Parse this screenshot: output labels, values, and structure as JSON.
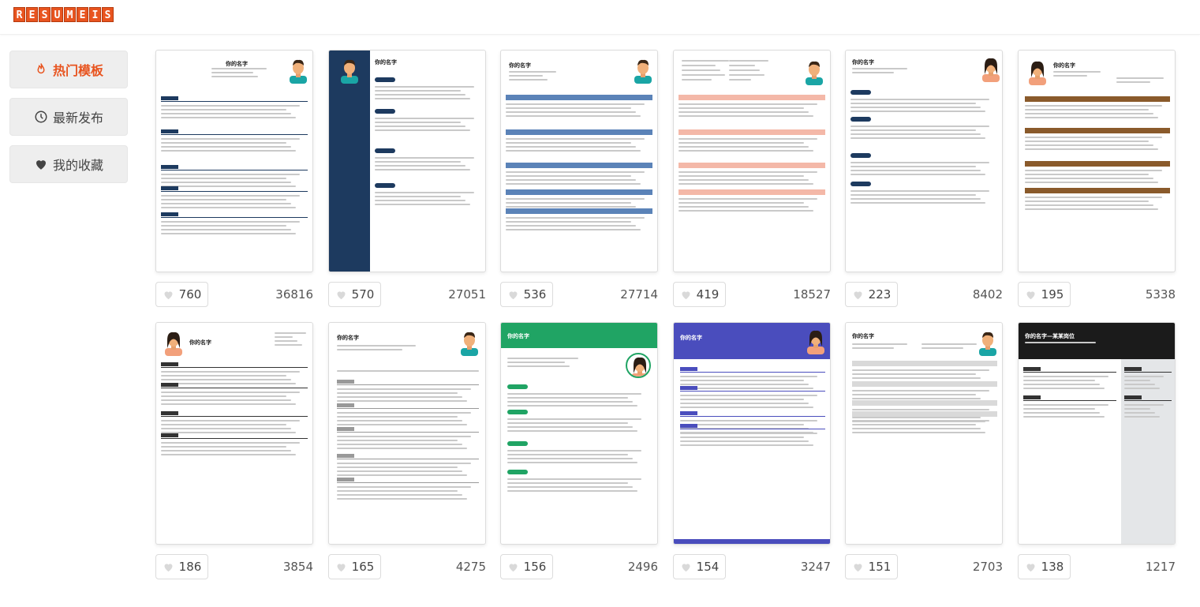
{
  "logo": {
    "letters": [
      "R",
      "E",
      "S",
      "U",
      "M",
      "E",
      "I",
      "S"
    ]
  },
  "sidebar": {
    "items": [
      {
        "label": "热门模板",
        "icon": "flame-icon",
        "active": true
      },
      {
        "label": "最新发布",
        "icon": "clock-icon",
        "active": false
      },
      {
        "label": "我的收藏",
        "icon": "heart-icon",
        "active": false
      }
    ]
  },
  "templates": [
    {
      "style": "classic-blue",
      "name": "你的名字",
      "likes": "760",
      "views": "36816"
    },
    {
      "style": "navy-sidebar",
      "name": "你的名字",
      "likes": "570",
      "views": "27051"
    },
    {
      "style": "plain-blue",
      "name": "你的名字",
      "likes": "536",
      "views": "27714"
    },
    {
      "style": "salmon",
      "name": "",
      "likes": "419",
      "views": "18527"
    },
    {
      "style": "pill-navy",
      "name": "你的名字",
      "likes": "223",
      "views": "8402"
    },
    {
      "style": "brown-bars",
      "name": "你的名字",
      "likes": "195",
      "views": "5338"
    },
    {
      "style": "mono-left",
      "name": "你的名字",
      "likes": "186",
      "views": "3854"
    },
    {
      "style": "centered-sections",
      "name": "你的名字",
      "likes": "165",
      "views": "4275"
    },
    {
      "style": "green-header",
      "name": "你的名字",
      "likes": "156",
      "views": "2496"
    },
    {
      "style": "purple-header",
      "name": "你的名字",
      "likes": "154",
      "views": "3247"
    },
    {
      "style": "gray-bars",
      "name": "你的名字",
      "likes": "151",
      "views": "2703"
    },
    {
      "style": "black-header",
      "name": "你的名字—某某岗位",
      "likes": "138",
      "views": "1217"
    }
  ],
  "colors": {
    "accent": "#e8541f",
    "navy": "#1d3a5f",
    "green": "#20a464",
    "purple": "#4a4dbd",
    "brown": "#8a5a2b",
    "salmon": "#f4b8a8"
  }
}
